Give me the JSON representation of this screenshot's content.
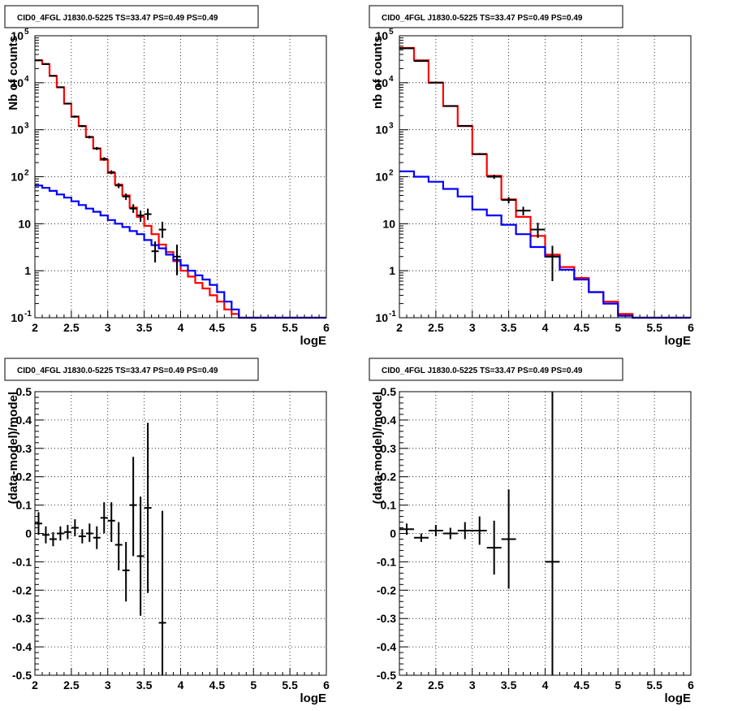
{
  "colors": {
    "data": "#000000",
    "total_model": "#ff0000",
    "component_model": "#0000ff",
    "grid": "#000000",
    "background": "#ffffff"
  },
  "chart_data": [
    {
      "type": "line",
      "title": "CID0_4FGL J1830.0-5225 TS=33.47 PS=0.49 PS=0.49",
      "xlabel": "logE",
      "ylabel": "Nb of counts",
      "xlim": [
        2,
        6
      ],
      "ylim": [
        0.1,
        100000
      ],
      "yscale": "log",
      "grid": true,
      "x_ticks": [
        "2",
        "2.5",
        "3",
        "3.5",
        "4",
        "4.5",
        "5",
        "5.5",
        "6"
      ],
      "y_ticks": [
        "10^-1",
        "1",
        "10",
        "10^2",
        "10^3",
        "10^4",
        "10^5"
      ],
      "bin_edges": [
        2.0,
        2.1,
        2.2,
        2.3,
        2.4,
        2.5,
        2.6,
        2.7,
        2.8,
        2.9,
        3.0,
        3.1,
        3.2,
        3.3,
        3.4,
        3.5,
        3.6,
        3.7,
        3.8,
        3.9,
        4.0,
        4.1,
        4.2,
        4.3,
        4.4,
        4.5,
        4.6,
        4.7,
        4.8,
        4.9,
        5.0,
        5.1,
        5.2,
        5.3,
        5.4,
        5.5,
        5.6,
        5.7,
        5.8,
        5.9,
        6.0
      ],
      "series": [
        {
          "name": "",
          "kind": "step",
          "color": "#ff0000",
          "values": [
            30000,
            25000,
            14000,
            8000,
            3600,
            1900,
            1200,
            700,
            400,
            230,
            120,
            68,
            40,
            22,
            14,
            9,
            6,
            3.6,
            2.5,
            1.6,
            1.0,
            0.75,
            0.55,
            0.42,
            0.3,
            0.22,
            0.15,
            0.12,
            0.1,
            0.1,
            0.1,
            0.1,
            0.1,
            0.1,
            0.1,
            0.1,
            0.1,
            0.1,
            0.1,
            0.1
          ]
        },
        {
          "name": "",
          "kind": "step",
          "color": "#0000ff",
          "values": [
            65,
            58,
            50,
            42,
            36,
            30,
            25,
            21,
            18,
            15,
            12,
            10,
            8.5,
            7,
            6,
            4.5,
            3.5,
            3,
            2.2,
            1.7,
            1.3,
            1.0,
            0.8,
            0.65,
            0.5,
            0.35,
            0.22,
            0.15,
            0.1,
            0.1,
            0.1,
            0.1,
            0.1,
            0.1,
            0.1,
            0.1,
            0.1,
            0.1,
            0.1,
            0.1
          ]
        }
      ],
      "points": [
        {
          "x": 2.05,
          "y": 30000,
          "ylo": 29000,
          "yhi": 31000
        },
        {
          "x": 2.15,
          "y": 25000,
          "ylo": 24000,
          "yhi": 26000
        },
        {
          "x": 2.25,
          "y": 14000,
          "ylo": 13500,
          "yhi": 14500
        },
        {
          "x": 2.35,
          "y": 8000,
          "ylo": 7700,
          "yhi": 8300
        },
        {
          "x": 2.45,
          "y": 3600,
          "ylo": 3450,
          "yhi": 3750
        },
        {
          "x": 2.55,
          "y": 1900,
          "ylo": 1800,
          "yhi": 2000
        },
        {
          "x": 2.65,
          "y": 1200,
          "ylo": 1140,
          "yhi": 1260
        },
        {
          "x": 2.75,
          "y": 700,
          "ylo": 650,
          "yhi": 750
        },
        {
          "x": 2.85,
          "y": 400,
          "ylo": 370,
          "yhi": 430
        },
        {
          "x": 2.95,
          "y": 240,
          "ylo": 220,
          "yhi": 260
        },
        {
          "x": 3.05,
          "y": 125,
          "ylo": 113,
          "yhi": 137
        },
        {
          "x": 3.15,
          "y": 65,
          "ylo": 57,
          "yhi": 73
        },
        {
          "x": 3.25,
          "y": 38,
          "ylo": 32,
          "yhi": 44
        },
        {
          "x": 3.35,
          "y": 21,
          "ylo": 17,
          "yhi": 26
        },
        {
          "x": 3.45,
          "y": 15,
          "ylo": 11,
          "yhi": 19
        },
        {
          "x": 3.55,
          "y": 16,
          "ylo": 12,
          "yhi": 21
        },
        {
          "x": 3.65,
          "y": 2.6,
          "ylo": 1.5,
          "yhi": 4.2
        },
        {
          "x": 3.75,
          "y": 7.5,
          "ylo": 5,
          "yhi": 11
        },
        {
          "x": 3.95,
          "y": 2.0,
          "ylo": 0.8,
          "yhi": 3.6
        }
      ]
    },
    {
      "type": "line",
      "title": "CID0_4FGL J1830.0-5225 TS=33.47 PS=0.49 PS=0.49",
      "xlabel": "logE",
      "ylabel": "nb of counts",
      "xlim": [
        2,
        6
      ],
      "ylim": [
        0.1,
        100000
      ],
      "yscale": "log",
      "grid": true,
      "x_ticks": [
        "2",
        "2.5",
        "3",
        "3.5",
        "4",
        "4.5",
        "5",
        "5.5",
        "6"
      ],
      "y_ticks": [
        "10^-1",
        "1",
        "10",
        "10^2",
        "10^3",
        "10^4",
        "10^5"
      ],
      "bin_edges": [
        2.0,
        2.2,
        2.4,
        2.6,
        2.8,
        3.0,
        3.2,
        3.4,
        3.6,
        3.8,
        4.0,
        4.2,
        4.4,
        4.6,
        4.8,
        5.0,
        5.2,
        5.4,
        5.6,
        5.8,
        6.0
      ],
      "series": [
        {
          "name": "",
          "kind": "step",
          "color": "#ff0000",
          "values": [
            55000,
            30000,
            10000,
            3200,
            1200,
            300,
            105,
            33,
            14,
            5.5,
            2.2,
            1.2,
            0.7,
            0.35,
            0.22,
            0.12,
            0.1,
            0.1,
            0.1,
            0.1
          ]
        },
        {
          "name": "",
          "kind": "step",
          "color": "#0000ff",
          "values": [
            130,
            100,
            78,
            55,
            38,
            20,
            15,
            9.5,
            6,
            3.2,
            2.0,
            1.05,
            0.65,
            0.35,
            0.2,
            0.11,
            0.1,
            0.1,
            0.1,
            0.1
          ]
        }
      ],
      "points": [
        {
          "x": 2.1,
          "y": 54000,
          "ylo": 53500,
          "yhi": 54500
        },
        {
          "x": 2.3,
          "y": 29000,
          "ylo": 28600,
          "yhi": 29400
        },
        {
          "x": 2.5,
          "y": 10100,
          "ylo": 9900,
          "yhi": 10300
        },
        {
          "x": 2.7,
          "y": 3200,
          "ylo": 3100,
          "yhi": 3300
        },
        {
          "x": 2.9,
          "y": 1210,
          "ylo": 1170,
          "yhi": 1250
        },
        {
          "x": 3.1,
          "y": 305,
          "ylo": 290,
          "yhi": 320
        },
        {
          "x": 3.3,
          "y": 100,
          "ylo": 90,
          "yhi": 110
        },
        {
          "x": 3.5,
          "y": 32,
          "ylo": 27,
          "yhi": 37
        },
        {
          "x": 3.7,
          "y": 19,
          "ylo": 15,
          "yhi": 23
        },
        {
          "x": 3.9,
          "y": 7.5,
          "ylo": 5,
          "yhi": 10.5
        },
        {
          "x": 4.1,
          "y": 2.0,
          "ylo": 0.6,
          "yhi": 3.4
        }
      ]
    },
    {
      "type": "scatter",
      "title": "CID0_4FGL J1830.0-5225 TS=33.47 PS=0.49 PS=0.49",
      "xlabel": "logE",
      "ylabel": "(data-model)/model",
      "xlim": [
        2,
        6
      ],
      "ylim": [
        -0.5,
        0.5
      ],
      "grid": true,
      "x_ticks": [
        "2",
        "2.5",
        "3",
        "3.5",
        "4",
        "4.5",
        "5",
        "5.5",
        "6"
      ],
      "y_ticks": [
        "-0.5",
        "-0.4",
        "-0.3",
        "-0.2",
        "-0.1",
        "0",
        "0.1",
        "0.2",
        "0.3",
        "0.4",
        "0.5"
      ],
      "points": [
        {
          "x": 2.05,
          "y": 0.035,
          "ylo": -0.005,
          "yhi": 0.075,
          "xerr": 0.05
        },
        {
          "x": 2.15,
          "y": -0.005,
          "ylo": -0.035,
          "yhi": 0.025,
          "xerr": 0.05
        },
        {
          "x": 2.25,
          "y": -0.02,
          "ylo": -0.045,
          "yhi": 0.005,
          "xerr": 0.05
        },
        {
          "x": 2.35,
          "y": 0.0,
          "ylo": -0.025,
          "yhi": 0.025,
          "xerr": 0.05
        },
        {
          "x": 2.45,
          "y": 0.005,
          "ylo": -0.02,
          "yhi": 0.03,
          "xerr": 0.05
        },
        {
          "x": 2.55,
          "y": 0.02,
          "ylo": -0.01,
          "yhi": 0.05,
          "xerr": 0.05
        },
        {
          "x": 2.65,
          "y": -0.01,
          "ylo": -0.035,
          "yhi": 0.015,
          "xerr": 0.05
        },
        {
          "x": 2.75,
          "y": 0.0,
          "ylo": -0.03,
          "yhi": 0.035,
          "xerr": 0.05
        },
        {
          "x": 2.85,
          "y": -0.015,
          "ylo": -0.055,
          "yhi": 0.025,
          "xerr": 0.05
        },
        {
          "x": 2.95,
          "y": 0.055,
          "ylo": 0.0,
          "yhi": 0.11,
          "xerr": 0.05
        },
        {
          "x": 3.05,
          "y": 0.045,
          "ylo": -0.03,
          "yhi": 0.11,
          "xerr": 0.05
        },
        {
          "x": 3.15,
          "y": -0.04,
          "ylo": -0.13,
          "yhi": 0.04,
          "xerr": 0.05
        },
        {
          "x": 3.25,
          "y": -0.13,
          "ylo": -0.24,
          "yhi": -0.03,
          "xerr": 0.05
        },
        {
          "x": 3.35,
          "y": 0.1,
          "ylo": -0.08,
          "yhi": 0.27,
          "xerr": 0.05
        },
        {
          "x": 3.45,
          "y": -0.08,
          "ylo": -0.29,
          "yhi": 0.13,
          "xerr": 0.05
        },
        {
          "x": 3.55,
          "y": 0.09,
          "ylo": -0.21,
          "yhi": 0.39,
          "xerr": 0.05
        },
        {
          "x": 3.75,
          "y": -0.315,
          "ylo": -0.5,
          "yhi": 0.08,
          "xerr": 0.05
        }
      ]
    },
    {
      "type": "scatter",
      "title": "CID0_4FGL J1830.0-5225 TS=33.47 PS=0.49 PS=0.49",
      "xlabel": "logE",
      "ylabel": "(data-model)/model",
      "xlim": [
        2,
        6
      ],
      "ylim": [
        -0.5,
        0.5
      ],
      "grid": true,
      "x_ticks": [
        "2",
        "2.5",
        "3",
        "3.5",
        "4",
        "4.5",
        "5",
        "5.5",
        "6"
      ],
      "y_ticks": [
        "-0.5",
        "-0.4",
        "-0.3",
        "-0.2",
        "-0.1",
        "0",
        "0.1",
        "0.2",
        "0.3",
        "0.4",
        "0.5"
      ],
      "points": [
        {
          "x": 2.1,
          "y": 0.015,
          "ylo": -0.005,
          "yhi": 0.035,
          "xerr": 0.1
        },
        {
          "x": 2.3,
          "y": -0.015,
          "ylo": -0.03,
          "yhi": 0.0,
          "xerr": 0.1
        },
        {
          "x": 2.5,
          "y": 0.01,
          "ylo": -0.01,
          "yhi": 0.03,
          "xerr": 0.1
        },
        {
          "x": 2.7,
          "y": 0.0,
          "ylo": -0.02,
          "yhi": 0.02,
          "xerr": 0.1
        },
        {
          "x": 2.9,
          "y": 0.01,
          "ylo": -0.02,
          "yhi": 0.04,
          "xerr": 0.1
        },
        {
          "x": 3.1,
          "y": 0.01,
          "ylo": -0.04,
          "yhi": 0.06,
          "xerr": 0.1
        },
        {
          "x": 3.3,
          "y": -0.05,
          "ylo": -0.145,
          "yhi": 0.045,
          "xerr": 0.1
        },
        {
          "x": 3.5,
          "y": -0.02,
          "ylo": -0.195,
          "yhi": 0.155,
          "xerr": 0.1
        },
        {
          "x": 4.1,
          "y": -0.1,
          "ylo": -0.5,
          "yhi": 0.5,
          "xerr": 0.1
        }
      ]
    }
  ]
}
